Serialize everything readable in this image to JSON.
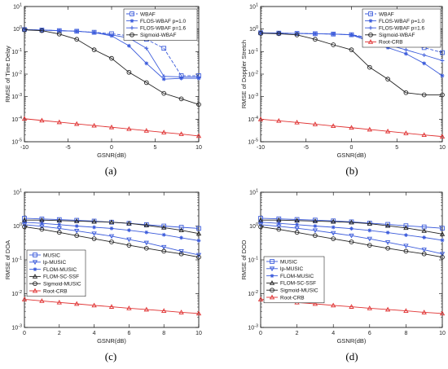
{
  "chart_data": [
    {
      "id": "a",
      "type": "line",
      "subfig_label": "(a)",
      "xlabel": "GSNR(dB)",
      "ylabel": "RMSE of Time Delay",
      "xlim": [
        -10,
        10
      ],
      "xticks": [
        -10,
        -5,
        0,
        5,
        10
      ],
      "ylog": true,
      "ylim_exp": [
        -5,
        1
      ],
      "legend_position": "top-right",
      "series": [
        {
          "name": "WBAF",
          "color": "#3b5bdb",
          "dash": "4,2",
          "marker": "square",
          "x": [
            -10,
            -8,
            -6,
            -4,
            -2,
            0,
            2,
            4,
            6,
            8,
            10
          ],
          "y": [
            0.95,
            0.9,
            0.85,
            0.8,
            0.72,
            0.62,
            0.5,
            0.35,
            0.14,
            0.0085,
            0.0085
          ]
        },
        {
          "name": "FLOS-WBAF p=1.0",
          "color": "#3b5bdb",
          "dash": "",
          "marker": "star",
          "x": [
            -10,
            -8,
            -6,
            -4,
            -2,
            0,
            2,
            4,
            6,
            8,
            10
          ],
          "y": [
            0.95,
            0.9,
            0.85,
            0.8,
            0.7,
            0.5,
            0.18,
            0.03,
            0.006,
            0.0065,
            0.0065
          ]
        },
        {
          "name": "FLOS-WBAF p=1.6",
          "color": "#3b5bdb",
          "dash": "",
          "marker": "plus",
          "x": [
            -10,
            -8,
            -6,
            -4,
            -2,
            0,
            2,
            4,
            6,
            8,
            10
          ],
          "y": [
            0.95,
            0.9,
            0.85,
            0.8,
            0.7,
            0.55,
            0.4,
            0.14,
            0.008,
            0.0075,
            0.0075
          ]
        },
        {
          "name": "Sigmoid-WBAF",
          "color": "#222222",
          "dash": "",
          "marker": "circle",
          "x": [
            -10,
            -8,
            -6,
            -4,
            -2,
            0,
            2,
            4,
            6,
            8,
            10
          ],
          "y": [
            0.92,
            0.85,
            0.6,
            0.35,
            0.12,
            0.05,
            0.012,
            0.0042,
            0.0014,
            0.0008,
            0.00045
          ]
        },
        {
          "name": "",
          "color": "#e03131",
          "dash": "",
          "marker": "triangle",
          "x": [
            -10,
            -8,
            -6,
            -4,
            -2,
            0,
            2,
            4,
            6,
            8,
            10
          ],
          "y": [
            0.000105,
            8.8e-05,
            7.4e-05,
            6.2e-05,
            5.2e-05,
            4.4e-05,
            3.7e-05,
            3.1e-05,
            2.6e-05,
            2.2e-05,
            1.8e-05
          ]
        }
      ]
    },
    {
      "id": "b",
      "type": "line",
      "subfig_label": "(b)",
      "xlabel": "GSNR(dB)",
      "ylabel": "RMSE of Doppler Stretch",
      "xlim": [
        -10,
        10
      ],
      "xticks": [
        -10,
        -5,
        0,
        5,
        10
      ],
      "ylog": true,
      "ylim_exp": [
        -5,
        1
      ],
      "legend_position": "top-right",
      "series": [
        {
          "name": "WBAF",
          "color": "#3b5bdb",
          "dash": "4,2",
          "marker": "square",
          "x": [
            -10,
            -8,
            -6,
            -4,
            -2,
            0,
            2,
            4,
            6,
            8,
            10
          ],
          "y": [
            0.68,
            0.66,
            0.64,
            0.62,
            0.6,
            0.56,
            0.42,
            0.3,
            0.2,
            0.15,
            0.09
          ]
        },
        {
          "name": "FLOS-WBAF p=1.0",
          "color": "#3b5bdb",
          "dash": "",
          "marker": "star",
          "x": [
            -10,
            -8,
            -6,
            -4,
            -2,
            0,
            2,
            4,
            6,
            8,
            10
          ],
          "y": [
            0.68,
            0.66,
            0.64,
            0.62,
            0.6,
            0.55,
            0.28,
            0.15,
            0.08,
            0.03,
            0.0085
          ]
        },
        {
          "name": "FLOS-WBAF p=1.6",
          "color": "#3b5bdb",
          "dash": "",
          "marker": "plus",
          "x": [
            -10,
            -8,
            -6,
            -4,
            -2,
            0,
            2,
            4,
            6,
            8,
            10
          ],
          "y": [
            0.68,
            0.66,
            0.64,
            0.62,
            0.6,
            0.56,
            0.35,
            0.2,
            0.12,
            0.07,
            0.04
          ]
        },
        {
          "name": "Sigmoid-WBAF",
          "color": "#222222",
          "dash": "",
          "marker": "circle",
          "x": [
            -10,
            -8,
            -6,
            -4,
            -2,
            0,
            2,
            4,
            6,
            8,
            10
          ],
          "y": [
            0.65,
            0.62,
            0.55,
            0.35,
            0.2,
            0.12,
            0.02,
            0.006,
            0.0015,
            0.0012,
            0.0012
          ]
        },
        {
          "name": "Root-CRB",
          "color": "#e03131",
          "dash": "",
          "marker": "triangle",
          "x": [
            -10,
            -8,
            -6,
            -4,
            -2,
            0,
            2,
            4,
            6,
            8,
            10
          ],
          "y": [
            0.0001,
            8.5e-05,
            7.2e-05,
            6e-05,
            5e-05,
            4.2e-05,
            3.5e-05,
            2.9e-05,
            2.4e-05,
            2e-05,
            1.7e-05
          ]
        }
      ]
    },
    {
      "id": "c",
      "type": "line",
      "subfig_label": "(c)",
      "xlabel": "GSNR(dB)",
      "ylabel": "RMSE of DOA",
      "xlim": [
        0,
        10
      ],
      "xticks": [
        0,
        2,
        4,
        6,
        8,
        10
      ],
      "ylog": true,
      "ylim_exp": [
        -3,
        1
      ],
      "legend_position": "center-left",
      "series": [
        {
          "name": "MUSIC",
          "color": "#3b5bdb",
          "dash": "",
          "marker": "square",
          "x": [
            0,
            1,
            2,
            3,
            4,
            5,
            6,
            7,
            8,
            9,
            10
          ],
          "y": [
            1.7,
            1.62,
            1.55,
            1.48,
            1.4,
            1.3,
            1.2,
            1.1,
            1.0,
            0.92,
            0.85
          ]
        },
        {
          "name": "lp-MUSIC",
          "color": "#3b5bdb",
          "dash": "",
          "marker": "triangle-down",
          "x": [
            0,
            1,
            2,
            3,
            4,
            5,
            6,
            7,
            8,
            9,
            10
          ],
          "y": [
            1.1,
            0.98,
            0.85,
            0.72,
            0.6,
            0.5,
            0.4,
            0.32,
            0.24,
            0.18,
            0.14
          ]
        },
        {
          "name": "FLOM-MUSIC",
          "color": "#3b5bdb",
          "dash": "",
          "marker": "star",
          "x": [
            0,
            1,
            2,
            3,
            4,
            5,
            6,
            7,
            8,
            9,
            10
          ],
          "y": [
            1.3,
            1.2,
            1.1,
            1.0,
            0.92,
            0.85,
            0.75,
            0.65,
            0.55,
            0.45,
            0.37
          ]
        },
        {
          "name": "FLOM-SC-SSF",
          "color": "#222222",
          "dash": "",
          "marker": "triangle",
          "x": [
            0,
            1,
            2,
            3,
            4,
            5,
            6,
            7,
            8,
            9,
            10
          ],
          "y": [
            1.5,
            1.5,
            1.45,
            1.4,
            1.35,
            1.3,
            1.2,
            1.05,
            0.9,
            0.75,
            0.6
          ]
        },
        {
          "name": "Sigmoid-MUSIC",
          "color": "#222222",
          "dash": "",
          "marker": "circle",
          "x": [
            0,
            1,
            2,
            3,
            4,
            5,
            6,
            7,
            8,
            9,
            10
          ],
          "y": [
            0.95,
            0.8,
            0.65,
            0.52,
            0.42,
            0.34,
            0.27,
            0.22,
            0.18,
            0.15,
            0.12
          ]
        },
        {
          "name": "Root-CRB",
          "color": "#e03131",
          "dash": "",
          "marker": "triangle",
          "x": [
            0,
            1,
            2,
            3,
            4,
            5,
            6,
            7,
            8,
            9,
            10
          ],
          "y": [
            0.0068,
            0.0061,
            0.0055,
            0.005,
            0.0045,
            0.0041,
            0.0037,
            0.0034,
            0.0031,
            0.0028,
            0.0026
          ]
        }
      ]
    },
    {
      "id": "d",
      "type": "line",
      "subfig_label": "(d)",
      "xlabel": "GSNR(dB)",
      "ylabel": "RMSE of DOD",
      "xlim": [
        0,
        10
      ],
      "xticks": [
        0,
        2,
        4,
        6,
        8,
        10
      ],
      "ylog": true,
      "ylim_exp": [
        -3,
        1
      ],
      "legend_position": "center-left",
      "series": [
        {
          "name": "MUSIC",
          "color": "#3b5bdb",
          "dash": "",
          "marker": "square",
          "x": [
            0,
            1,
            2,
            3,
            4,
            5,
            6,
            7,
            8,
            9,
            10
          ],
          "y": [
            1.7,
            1.63,
            1.56,
            1.5,
            1.42,
            1.33,
            1.22,
            1.12,
            1.02,
            0.94,
            0.86
          ]
        },
        {
          "name": "lp-MUSIC",
          "color": "#3b5bdb",
          "dash": "",
          "marker": "triangle-down",
          "x": [
            0,
            1,
            2,
            3,
            4,
            5,
            6,
            7,
            8,
            9,
            10
          ],
          "y": [
            1.1,
            0.98,
            0.86,
            0.74,
            0.62,
            0.52,
            0.42,
            0.33,
            0.26,
            0.2,
            0.15
          ]
        },
        {
          "name": "FLOM-MUSIC",
          "color": "#3b5bdb",
          "dash": "",
          "marker": "star",
          "x": [
            0,
            1,
            2,
            3,
            4,
            5,
            6,
            7,
            8,
            9,
            10
          ],
          "y": [
            1.3,
            1.2,
            1.1,
            1.0,
            0.92,
            0.84,
            0.74,
            0.64,
            0.54,
            0.46,
            0.38
          ]
        },
        {
          "name": "FLOM-SC-SSF",
          "color": "#222222",
          "dash": "",
          "marker": "triangle",
          "x": [
            0,
            1,
            2,
            3,
            4,
            5,
            6,
            7,
            8,
            9,
            10
          ],
          "y": [
            1.5,
            1.5,
            1.45,
            1.4,
            1.35,
            1.28,
            1.18,
            1.02,
            0.88,
            0.72,
            0.58
          ]
        },
        {
          "name": "Sigmoid-MUSIC",
          "color": "#222222",
          "dash": "",
          "marker": "circle",
          "x": [
            0,
            1,
            2,
            3,
            4,
            5,
            6,
            7,
            8,
            9,
            10
          ],
          "y": [
            0.95,
            0.8,
            0.65,
            0.52,
            0.42,
            0.34,
            0.27,
            0.22,
            0.18,
            0.15,
            0.12
          ]
        },
        {
          "name": "Root-CRB",
          "color": "#e03131",
          "dash": "",
          "marker": "triangle",
          "x": [
            0,
            1,
            2,
            3,
            4,
            5,
            6,
            7,
            8,
            9,
            10
          ],
          "y": [
            0.0068,
            0.0061,
            0.0055,
            0.005,
            0.0045,
            0.0041,
            0.0037,
            0.0034,
            0.0031,
            0.0028,
            0.0026
          ]
        }
      ]
    }
  ]
}
